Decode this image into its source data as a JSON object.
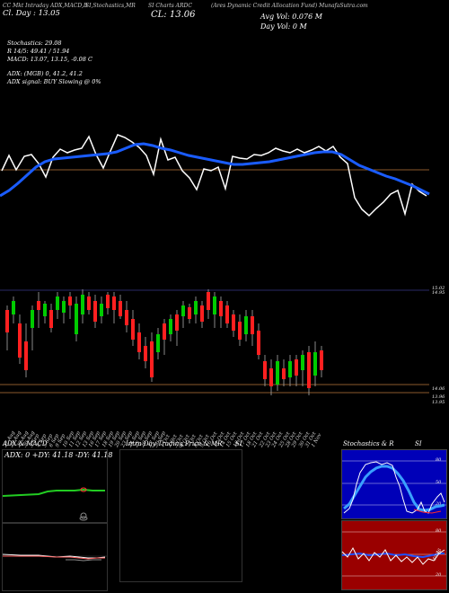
{
  "header": {
    "title_left": "CC Mkt Intraday ADX,MACD,B",
    "title_mid": "SI,Stochastics,MR",
    "title_mid2": "SI Charts ARDC",
    "title_right": "(Ares Dynamic Credit Allocation Fund) MunafaSutra.com",
    "close_change_line": "Cl. Day : 13.05",
    "close_value": "CL: 13.06",
    "avg_vol": "Avg Vol: 0.076  M",
    "day_vol": "Day Vol: 0  M"
  },
  "indicators": {
    "stochastics": "Stochastics: 29.08",
    "r_line": "R           14/5: 49.41 / 51.94",
    "macd": "MACD: 13.07,  13.15,  -0.08  C",
    "adx": "ADX:                           (MGB) 0,  41.2,  41.2",
    "adx_signal": "ADX  signal:                              BUY Slowing @ 0%"
  },
  "price_axis": {
    "top_label": "15.02",
    "top_label2": "14.95",
    "low_label": "14.06",
    "low_label2": "13.96",
    "low_label3": "13.95"
  },
  "dates": [
    "27 Aug",
    "28 Aug",
    "29 Aug",
    "30 Aug",
    "3 Sep",
    "4 Sep",
    "5 Sep",
    "6 Sep",
    "9 Sep",
    "10 Sep",
    "11 Sep",
    "12 Sep",
    "13 Sep",
    "16 Sep",
    "17 Sep",
    "18 Sep",
    "19 Sep",
    "20 Sep",
    "23 Sep",
    "24 Sep",
    "25 Sep",
    "26 Sep",
    "27 Sep",
    "30 Sep",
    "1 Oct",
    "2 Oct",
    "3 Oct",
    "4 Oct",
    "7 Oct",
    "8 Oct",
    "9 Oct",
    "10 Oct",
    "11 Oct",
    "14 Oct",
    "15 Oct",
    "16 Oct",
    "17 Oct",
    "18 Oct",
    "21 Oct",
    "22 Oct",
    "23 Oct",
    "24 Oct",
    "25 Oct",
    "28 Oct",
    "29 Oct",
    "30 Oct",
    "31 Oct",
    "1 Nov"
  ],
  "panels": {
    "adx_title": "ADX  & MACD",
    "adx_values": "ADX: 0  +DY: 41.18  -DY: 41.18",
    "intraday_title": "Intra  Day Trading Price  & MR",
    "intraday_si": "SI",
    "stoch_title": "Stochastics & R",
    "stoch_si": "SI",
    "stoch_ticks": [
      "80",
      "50",
      "20"
    ],
    "rsi_ticks": [
      "80",
      "50",
      "20"
    ],
    "rsi_value": "50.46"
  },
  "colors": {
    "up": "#00cc00",
    "down": "#ff2020",
    "ma": "#1a5cff",
    "brown": "#8b5a2b",
    "stoch_bg": "#0000b8",
    "rsi_bg": "#9a0000"
  }
}
